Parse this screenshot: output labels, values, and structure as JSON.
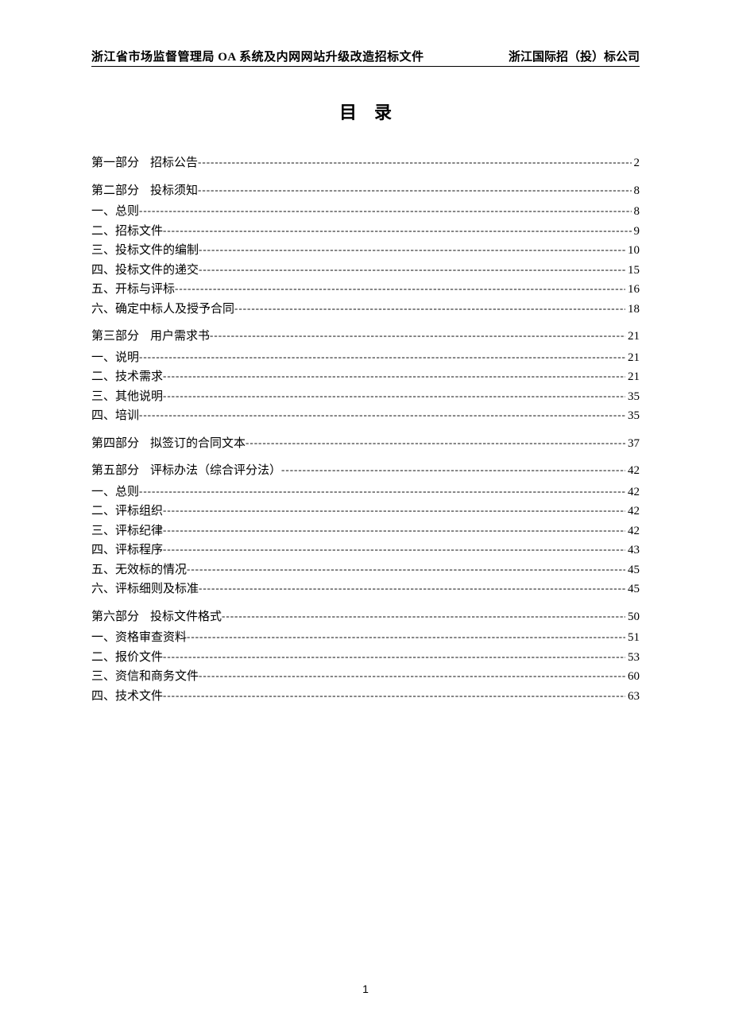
{
  "header": {
    "left": "浙江省市场监督管理局 OA 系统及内网网站升级改造招标文件",
    "right": "浙江国际招（投）标公司"
  },
  "title": "目录",
  "toc": [
    {
      "type": "part",
      "label": "第一部分",
      "text": "招标公告",
      "page": "2"
    },
    {
      "type": "part",
      "label": "第二部分",
      "text": "投标须知",
      "page": "8"
    },
    {
      "type": "sub",
      "text": "一、总则",
      "page": "8"
    },
    {
      "type": "sub",
      "text": "二、招标文件",
      "page": "9"
    },
    {
      "type": "sub",
      "text": "三、投标文件的编制",
      "page": "10"
    },
    {
      "type": "sub",
      "text": "四、投标文件的递交",
      "page": "15"
    },
    {
      "type": "sub",
      "text": "五、开标与评标",
      "page": "16"
    },
    {
      "type": "sub",
      "text": "六、确定中标人及授予合同",
      "page": "18"
    },
    {
      "type": "part",
      "label": "第三部分",
      "text": "用户需求书",
      "page": "21"
    },
    {
      "type": "sub",
      "text": "一、说明",
      "page": "21"
    },
    {
      "type": "sub",
      "text": "二、技术需求",
      "page": "21"
    },
    {
      "type": "sub",
      "text": "三、其他说明",
      "page": "35"
    },
    {
      "type": "sub",
      "text": "四、培训",
      "page": "35"
    },
    {
      "type": "part",
      "label": "第四部分",
      "text": "拟签订的合同文本",
      "page": "37"
    },
    {
      "type": "part",
      "label": "第五部分",
      "text": "评标办法（综合评分法）",
      "page": "42"
    },
    {
      "type": "sub",
      "text": "一、总则",
      "page": "42"
    },
    {
      "type": "sub",
      "text": "二、评标组织",
      "page": "42"
    },
    {
      "type": "sub",
      "text": "三、评标纪律",
      "page": "42"
    },
    {
      "type": "sub",
      "text": "四、评标程序",
      "page": "43"
    },
    {
      "type": "sub",
      "text": "五、无效标的情况",
      "page": "45"
    },
    {
      "type": "sub",
      "text": "六、评标细则及标准",
      "page": "45"
    },
    {
      "type": "part",
      "label": "第六部分",
      "text": "投标文件格式",
      "page": "50"
    },
    {
      "type": "sub",
      "text": "一、资格审查资料",
      "page": "51"
    },
    {
      "type": "sub",
      "text": "二、报价文件",
      "page": "53"
    },
    {
      "type": "sub",
      "text": "三、资信和商务文件",
      "page": "60"
    },
    {
      "type": "sub",
      "text": "四、技术文件",
      "page": "63"
    }
  ],
  "page_number": "1"
}
